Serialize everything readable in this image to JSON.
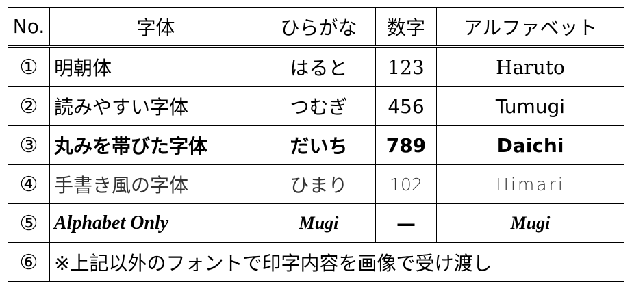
{
  "headers": [
    "No.",
    "字体",
    "ひらがな",
    "数字",
    "アルファベット"
  ],
  "rows": [
    {
      "no": "①",
      "font": "明朝体",
      "hiragana": "はると",
      "number": "123",
      "alphabet": "Haruto"
    },
    {
      "no": "②",
      "font": "読みやすい字体",
      "hiragana": "つむぎ",
      "number": "456",
      "alphabet": "Tumugi"
    },
    {
      "no": "③",
      "font": "丸みを帯びた字体",
      "hiragana": "だいち",
      "number": "789",
      "alphabet": "Daichi"
    },
    {
      "no": "④",
      "font": "手書き風の字体",
      "hiragana": "ひまり",
      "number": "102",
      "alphabet": "Himari"
    },
    {
      "no": "⑤",
      "font": "Alphabet Only",
      "hiragana": "Mugi",
      "number": "—",
      "alphabet": "Mugi"
    }
  ],
  "note_row": {
    "no": "⑥",
    "text": "※上記以外のフォントで印字内容を画像で受け渡し"
  }
}
